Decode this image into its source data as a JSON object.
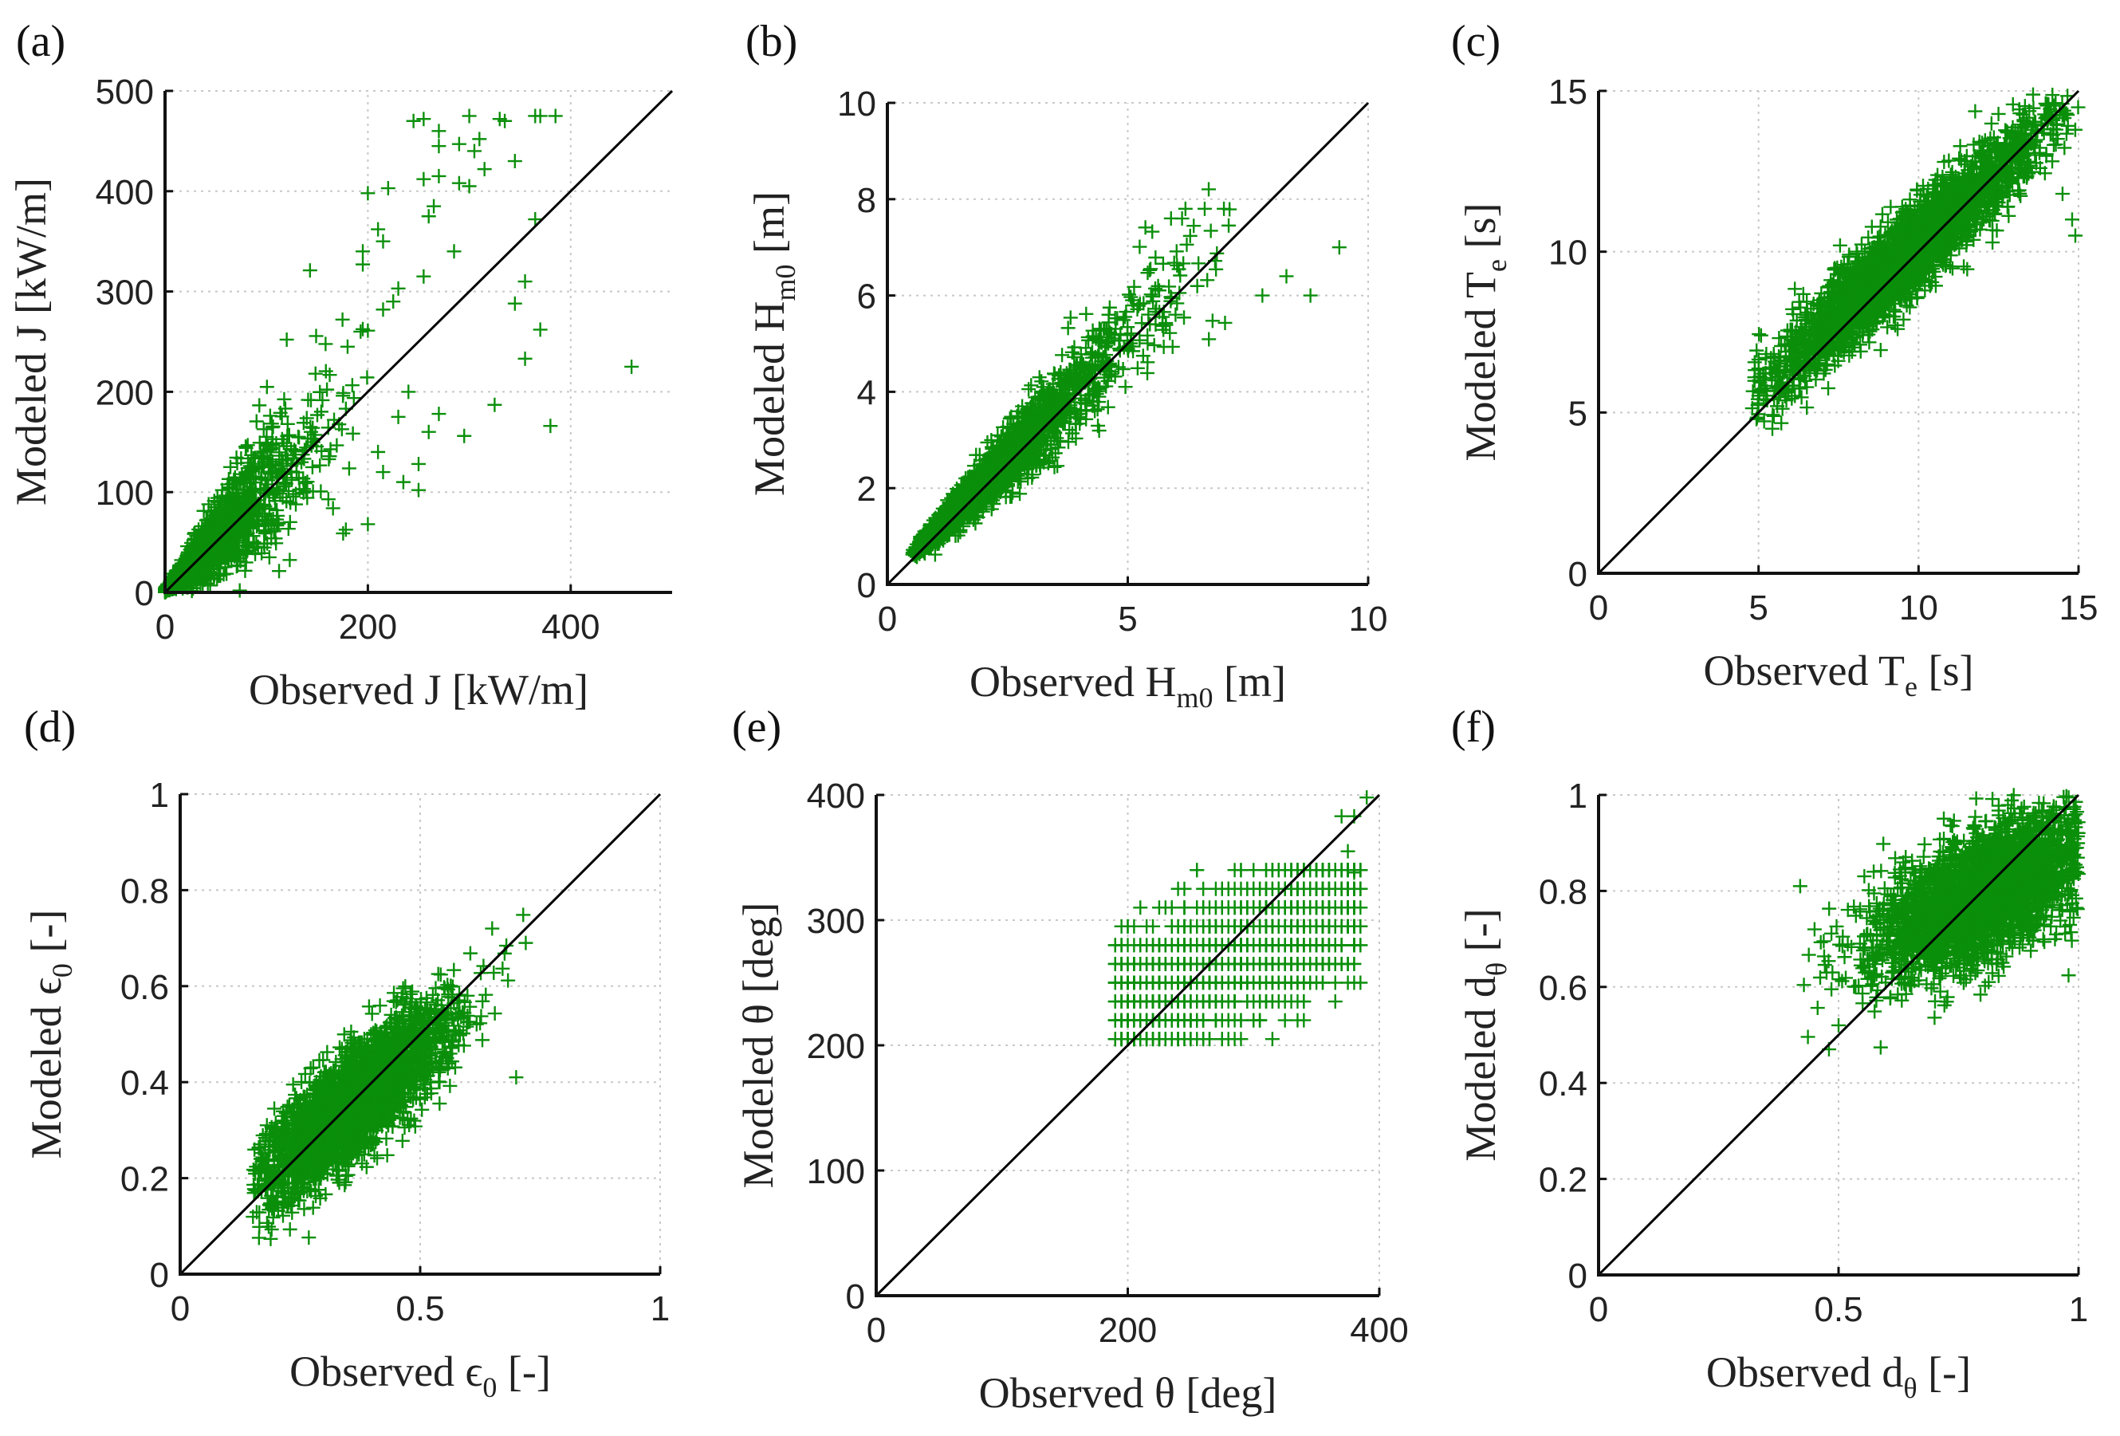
{
  "colors": {
    "marker": "#0b8f0b",
    "line": "#000000",
    "grid": "#c8c8c8"
  },
  "chart_data": [
    {
      "id": "a",
      "type": "scatter",
      "letter": "(a)",
      "xlabel": {
        "main": "Observed J [kW/m]",
        "sub": "",
        "tail": ""
      },
      "ylabel": {
        "main": "Modeled J [kW/m]",
        "sub": "",
        "tail": ""
      },
      "xlim": [
        0,
        500
      ],
      "ylim": [
        0,
        500
      ],
      "xticks": [
        0,
        200,
        400
      ],
      "xtick_labels": [
        "0",
        "200",
        "400"
      ],
      "yticks": [
        0,
        100,
        200,
        300,
        400,
        500
      ],
      "ytick_labels": [
        "0",
        "100",
        "200",
        "300",
        "400",
        "500"
      ],
      "reference_line": "y = x",
      "grid": true,
      "marker": "+",
      "cluster": {
        "n": 2600,
        "x_dist": "exponential",
        "x_mean": 38,
        "x_max": 200,
        "slope": 1.0,
        "intercept": 2,
        "noise_rel": 0.33,
        "seed": 11
      },
      "outliers": [
        [
          245,
          470
        ],
        [
          255,
          472
        ],
        [
          270,
          460
        ],
        [
          300,
          475
        ],
        [
          330,
          472
        ],
        [
          335,
          470
        ],
        [
          365,
          475
        ],
        [
          370,
          475
        ],
        [
          385,
          475
        ],
        [
          270,
          445
        ],
        [
          290,
          447
        ],
        [
          305,
          440
        ],
        [
          310,
          452
        ],
        [
          255,
          412
        ],
        [
          270,
          415
        ],
        [
          290,
          408
        ],
        [
          300,
          405
        ],
        [
          315,
          422
        ],
        [
          345,
          430
        ],
        [
          200,
          398
        ],
        [
          220,
          403
        ],
        [
          265,
          385
        ],
        [
          260,
          375
        ],
        [
          365,
          372
        ],
        [
          210,
          362
        ],
        [
          215,
          350
        ],
        [
          195,
          340
        ],
        [
          195,
          327
        ],
        [
          285,
          340
        ],
        [
          230,
          303
        ],
        [
          255,
          315
        ],
        [
          355,
          310
        ],
        [
          345,
          288
        ],
        [
          370,
          262
        ],
        [
          355,
          233
        ],
        [
          460,
          225
        ],
        [
          175,
          272
        ],
        [
          200,
          261
        ],
        [
          120,
          252
        ],
        [
          325,
          187
        ],
        [
          380,
          166
        ],
        [
          295,
          156
        ],
        [
          270,
          178
        ],
        [
          260,
          160
        ],
        [
          250,
          128
        ],
        [
          250,
          102
        ],
        [
          235,
          110
        ],
        [
          200,
          68
        ],
        [
          225,
          290
        ],
        [
          215,
          282
        ],
        [
          180,
          245
        ],
        [
          240,
          200
        ],
        [
          230,
          175
        ],
        [
          215,
          120
        ],
        [
          210,
          140
        ]
      ]
    },
    {
      "id": "b",
      "type": "scatter",
      "letter": "(b)",
      "xlabel": {
        "main": "Observed H",
        "sub": "m0",
        "tail": " [m]"
      },
      "ylabel": {
        "main": "Modeled H",
        "sub": "m0",
        "tail": " [m]"
      },
      "xlim": [
        0,
        10
      ],
      "ylim": [
        0,
        10
      ],
      "xticks": [
        0,
        5,
        10
      ],
      "xtick_labels": [
        "0",
        "5",
        "10"
      ],
      "yticks": [
        0,
        2,
        4,
        6,
        8,
        10
      ],
      "ytick_labels": [
        "0",
        "2",
        "4",
        "6",
        "8",
        "10"
      ],
      "reference_line": "y = x",
      "grid": true,
      "marker": "+",
      "cluster": {
        "n": 2600,
        "x_dist": "gamma",
        "x_min": 0.5,
        "x_mean": 2.2,
        "x_max": 7.2,
        "slope": 1.0,
        "intercept": 0.1,
        "noise_rel": 0.12,
        "seed": 23
      },
      "outliers": [
        [
          8.3,
          6.4
        ],
        [
          9.4,
          7.0
        ],
        [
          8.8,
          6.0
        ],
        [
          7.8,
          6.0
        ],
        [
          6.2,
          7.8
        ],
        [
          6.6,
          7.8
        ],
        [
          7.0,
          7.8
        ],
        [
          5.9,
          7.6
        ]
      ]
    },
    {
      "id": "c",
      "type": "scatter",
      "letter": "(c)",
      "xlabel": {
        "main": "Observed T",
        "sub": "e",
        "tail": " [s]"
      },
      "ylabel": {
        "main": "Modeled T",
        "sub": "e",
        "tail": " [s]"
      },
      "xlim": [
        0,
        15
      ],
      "ylim": [
        0,
        15
      ],
      "xticks": [
        0,
        5,
        10,
        15
      ],
      "xtick_labels": [
        "0",
        "5",
        "10",
        "15"
      ],
      "yticks": [
        0,
        5,
        10,
        15
      ],
      "ytick_labels": [
        "0",
        "5",
        "10",
        "15"
      ],
      "reference_line": "y = x",
      "grid": true,
      "marker": "+",
      "cluster": {
        "n": 3000,
        "x_dist": "normal",
        "x_min": 4.8,
        "x_mean": 9.5,
        "x_sd": 2.1,
        "x_max": 15,
        "slope": 0.9,
        "intercept": 1.2,
        "noise_abs": 0.65,
        "seed": 37
      },
      "outliers": [
        [
          14.8,
          11.0
        ],
        [
          14.9,
          10.5
        ],
        [
          14.5,
          11.8
        ],
        [
          13.8,
          12.6
        ]
      ]
    },
    {
      "id": "d",
      "type": "scatter",
      "letter": "(d)",
      "xlabel": {
        "main": "Observed ϵ",
        "sub": "0",
        "tail": " [-]"
      },
      "ylabel": {
        "main": "Modeled ϵ",
        "sub": "0",
        "tail": " [-]"
      },
      "xlim": [
        0,
        1
      ],
      "ylim": [
        0,
        1
      ],
      "xticks": [
        0,
        0.5,
        1
      ],
      "xtick_labels": [
        "0",
        "0.5",
        "1"
      ],
      "yticks": [
        0,
        0.2,
        0.4,
        0.6,
        0.8,
        1
      ],
      "ytick_labels": [
        "0",
        "0.2",
        "0.4",
        "0.6",
        "0.8",
        "1"
      ],
      "reference_line": "y = x",
      "grid": true,
      "marker": "+",
      "cluster": {
        "n": 3000,
        "x_dist": "normal",
        "x_min": 0.15,
        "x_mean": 0.36,
        "x_sd": 0.1,
        "x_max": 0.72,
        "slope": 0.8,
        "intercept": 0.07,
        "noise_abs": 0.055,
        "seed": 41
      },
      "outliers": [
        [
          0.72,
          0.69
        ],
        [
          0.7,
          0.41
        ],
        [
          0.65,
          0.72
        ]
      ]
    },
    {
      "id": "e",
      "type": "scatter",
      "letter": "(e)",
      "xlabel": {
        "main": "Observed θ [deg]",
        "sub": "",
        "tail": ""
      },
      "ylabel": {
        "main": "Modeled θ [deg]",
        "sub": "",
        "tail": ""
      },
      "xlim": [
        0,
        400
      ],
      "ylim": [
        0,
        400
      ],
      "xticks": [
        0,
        200,
        400
      ],
      "xtick_labels": [
        "0",
        "200",
        "400"
      ],
      "yticks": [
        0,
        100,
        200,
        300,
        400
      ],
      "ytick_labels": [
        "0",
        "100",
        "200",
        "300",
        "400"
      ],
      "reference_line": "y = x",
      "grid": true,
      "marker": "+",
      "y_bands": [
        205,
        220,
        235,
        250,
        265,
        280,
        295,
        310,
        325,
        340
      ],
      "cluster": {
        "n": 1800,
        "x_dist": "uniform",
        "x_min": 190,
        "x_max": 385,
        "slope": 0.5,
        "intercept": 130,
        "noise_abs": 28,
        "seed": 53
      },
      "outliers": [
        [
          390,
          398
        ],
        [
          370,
          383
        ],
        [
          380,
          383
        ],
        [
          375,
          355
        ],
        [
          380,
          338
        ]
      ]
    },
    {
      "id": "f",
      "type": "scatter",
      "letter": "(f)",
      "xlabel": {
        "main": "Observed d",
        "sub": "θ",
        "tail": " [-]"
      },
      "ylabel": {
        "main": "Modeled d",
        "sub": "θ",
        "tail": " [-]"
      },
      "xlim": [
        0,
        1
      ],
      "ylim": [
        0,
        1
      ],
      "xticks": [
        0,
        0.5,
        1
      ],
      "xtick_labels": [
        "0",
        "0.5",
        "1"
      ],
      "yticks": [
        0,
        0.2,
        0.4,
        0.6,
        0.8,
        1
      ],
      "ytick_labels": [
        "0",
        "0.2",
        "0.4",
        "0.6",
        "0.8",
        "1"
      ],
      "reference_line": "y = x",
      "grid": true,
      "marker": "+",
      "cluster": {
        "n": 3000,
        "x_dist": "normal",
        "x_min": 0.42,
        "x_mean": 0.8,
        "x_sd": 0.11,
        "x_max": 1.0,
        "slope": 0.45,
        "intercept": 0.43,
        "noise_abs": 0.065,
        "seed": 67
      },
      "outliers": [
        [
          0.48,
          0.47
        ],
        [
          0.5,
          0.52
        ],
        [
          0.42,
          0.81
        ],
        [
          0.45,
          0.72
        ]
      ]
    }
  ]
}
